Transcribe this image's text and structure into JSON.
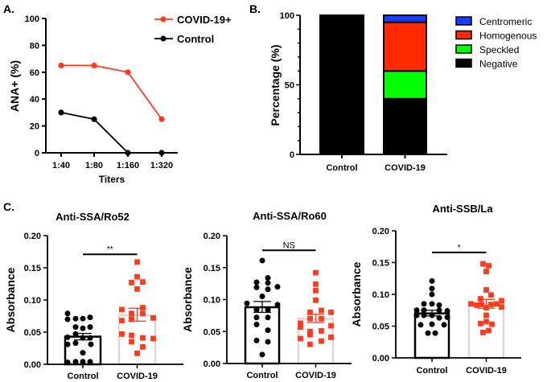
{
  "panel_labels": {
    "a": "A.",
    "b": "B.",
    "c": "C."
  },
  "colors": {
    "covid": "#ff3a1e",
    "control": "#000000",
    "centromeric": "#1a3cff",
    "homogenous": "#ff2a00",
    "speckled": "#00ff00",
    "negative": "#000000",
    "covid_bar_outline": "#d9d9d9"
  },
  "chart_data": [
    {
      "id": "A",
      "type": "line",
      "xlabel": "Titers",
      "ylabel": "ANA+ (%)",
      "categories": [
        "1:40",
        "1:80",
        "1:160",
        "1:320"
      ],
      "ylim": [
        0,
        100
      ],
      "yticks": [
        0,
        20,
        40,
        60,
        80,
        100
      ],
      "legend_position": "top-right",
      "series": [
        {
          "name": "COVID-19+",
          "color": "#ff3a1e",
          "values": [
            65,
            65,
            60,
            25
          ]
        },
        {
          "name": "Control",
          "color": "#000000",
          "values": [
            30,
            25,
            0,
            0
          ]
        }
      ]
    },
    {
      "id": "B",
      "type": "bar",
      "stacked": true,
      "ylabel": "Percentage (%)",
      "categories": [
        "Control",
        "COVID-19"
      ],
      "ylim": [
        0,
        100
      ],
      "yticks": [
        0,
        50,
        100
      ],
      "legend_position": "right",
      "series": [
        {
          "name": "Negative",
          "color": "#000000",
          "values": [
            100,
            40
          ]
        },
        {
          "name": "Speckled",
          "color": "#00ff00",
          "values": [
            0,
            20
          ]
        },
        {
          "name": "Homogenous",
          "color": "#ff2a00",
          "values": [
            0,
            35
          ]
        },
        {
          "name": "Centromeric",
          "color": "#1a3cff",
          "values": [
            0,
            5
          ]
        }
      ],
      "legend_order": [
        "Centromeric",
        "Homogenous",
        "Speckled",
        "Negative"
      ]
    },
    {
      "id": "C1",
      "type": "scatter",
      "title": "Anti-SSA/Ro52",
      "ylabel": "Absorbance",
      "categories": [
        "Control",
        "COVID-19"
      ],
      "ylim": [
        0,
        0.2
      ],
      "yticks": [
        "0.00",
        "0.05",
        "0.10",
        "0.15",
        "0.20"
      ],
      "significance": "**",
      "groups": [
        {
          "name": "Control",
          "mean": 0.043,
          "sem_low": 0.038,
          "sem_high": 0.048,
          "values": [
            0.079,
            0.07,
            0.071,
            0.071,
            0.073,
            0.058,
            0.056,
            0.058,
            0.042,
            0.047,
            0.041,
            0.041,
            0.033,
            0.031,
            0.031,
            0.018,
            0.003,
            0.004,
            0.004,
            0.004
          ]
        },
        {
          "name": "COVID-19",
          "mean": 0.076,
          "sem_low": 0.067,
          "sem_high": 0.087,
          "values": [
            0.159,
            0.136,
            0.127,
            0.128,
            0.117,
            0.085,
            0.088,
            0.079,
            0.079,
            0.068,
            0.07,
            0.072,
            0.047,
            0.045,
            0.041,
            0.04,
            0.035,
            0.027,
            0.017
          ]
        }
      ]
    },
    {
      "id": "C2",
      "type": "scatter",
      "title": "Anti-SSA/Ro60",
      "ylabel": "Absorbance",
      "categories": [
        "Control",
        "COVID-19"
      ],
      "ylim": [
        0,
        0.2
      ],
      "yticks": [
        "0.00",
        "0.05",
        "0.10",
        "0.15",
        "0.20"
      ],
      "significance": "NS",
      "groups": [
        {
          "name": "Control",
          "mean": 0.088,
          "sem_low": 0.08,
          "sem_high": 0.097,
          "values": [
            0.161,
            0.134,
            0.127,
            0.126,
            0.12,
            0.119,
            0.116,
            0.105,
            0.094,
            0.092,
            0.084,
            0.084,
            0.072,
            0.072,
            0.061,
            0.052,
            0.036,
            0.034,
            0.014
          ]
        },
        {
          "name": "COVID-19",
          "mean": 0.07,
          "sem_low": 0.064,
          "sem_high": 0.077,
          "values": [
            0.142,
            0.124,
            0.114,
            0.099,
            0.083,
            0.08,
            0.08,
            0.063,
            0.07,
            0.07,
            0.059,
            0.057,
            0.05,
            0.051,
            0.045,
            0.041,
            0.039,
            0.035,
            0.03
          ]
        }
      ]
    },
    {
      "id": "C3",
      "type": "scatter",
      "title": "Anti-SSB/La",
      "ylabel": "Absorbance",
      "categories": [
        "Control",
        "COVID-19"
      ],
      "ylim": [
        0,
        0.2
      ],
      "yticks": [
        "0.00",
        "0.05",
        "0.10",
        "0.15",
        "0.20"
      ],
      "significance": "*",
      "groups": [
        {
          "name": "Control",
          "mean": 0.07,
          "sem_low": 0.066,
          "sem_high": 0.075,
          "values": [
            0.121,
            0.109,
            0.1,
            0.085,
            0.085,
            0.083,
            0.075,
            0.075,
            0.075,
            0.074,
            0.067,
            0.067,
            0.067,
            0.064,
            0.063,
            0.052,
            0.053,
            0.052,
            0.039,
            0.039
          ]
        },
        {
          "name": "COVID-19",
          "mean": 0.085,
          "sem_low": 0.078,
          "sem_high": 0.092,
          "values": [
            0.148,
            0.145,
            0.136,
            0.107,
            0.099,
            0.093,
            0.085,
            0.09,
            0.083,
            0.084,
            0.084,
            0.085,
            0.08,
            0.079,
            0.067,
            0.057,
            0.054,
            0.053,
            0.04,
            0.043
          ]
        }
      ]
    }
  ]
}
